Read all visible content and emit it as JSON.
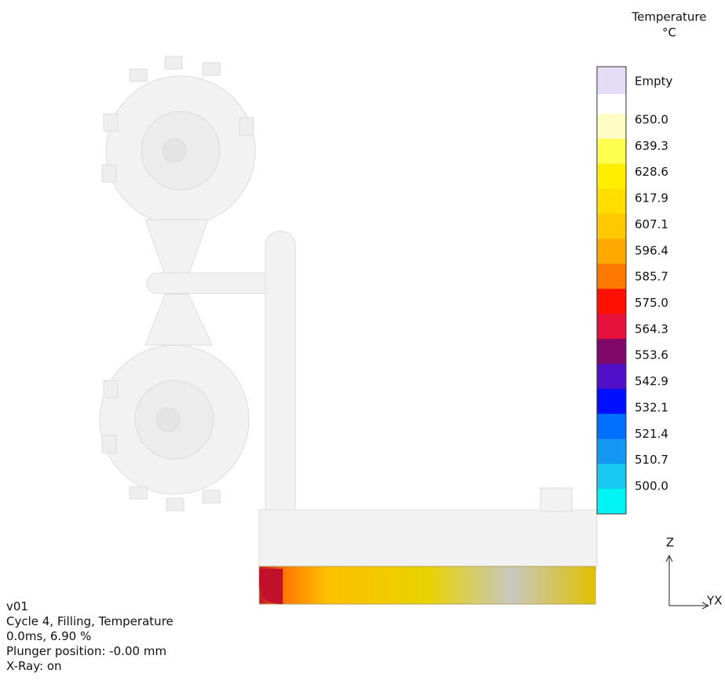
{
  "legend": {
    "title": "Temperature",
    "unit": "°C",
    "entries": [
      {
        "label": "Empty",
        "color": "#e4dcf4"
      },
      {
        "label": "650.0",
        "color": "#fffbc4"
      },
      {
        "label": "639.3",
        "color": "#ffff50"
      },
      {
        "label": "628.6",
        "color": "#ffee00"
      },
      {
        "label": "617.9",
        "color": "#ffdd00"
      },
      {
        "label": "607.1",
        "color": "#ffc800"
      },
      {
        "label": "596.4",
        "color": "#ffa800"
      },
      {
        "label": "585.7",
        "color": "#ff7a00"
      },
      {
        "label": "575.0",
        "color": "#ff1000"
      },
      {
        "label": "564.3",
        "color": "#e8103c"
      },
      {
        "label": "553.6",
        "color": "#80086a"
      },
      {
        "label": "542.9",
        "color": "#5010c8"
      },
      {
        "label": "532.1",
        "color": "#0010ff"
      },
      {
        "label": "521.4",
        "color": "#0070ff"
      },
      {
        "label": "510.7",
        "color": "#1498f4"
      },
      {
        "label": "500.0",
        "color": "#18c8f0"
      }
    ],
    "last_color": "#00f4f4"
  },
  "axes": {
    "vertical": "Z",
    "horizontal": "YX"
  },
  "info": [
    "v01",
    "Cycle 4, Filling, Temperature",
    "0.0ms, 6.90 %",
    "Plunger position: -0.00 mm",
    "X-Ray: on"
  ]
}
